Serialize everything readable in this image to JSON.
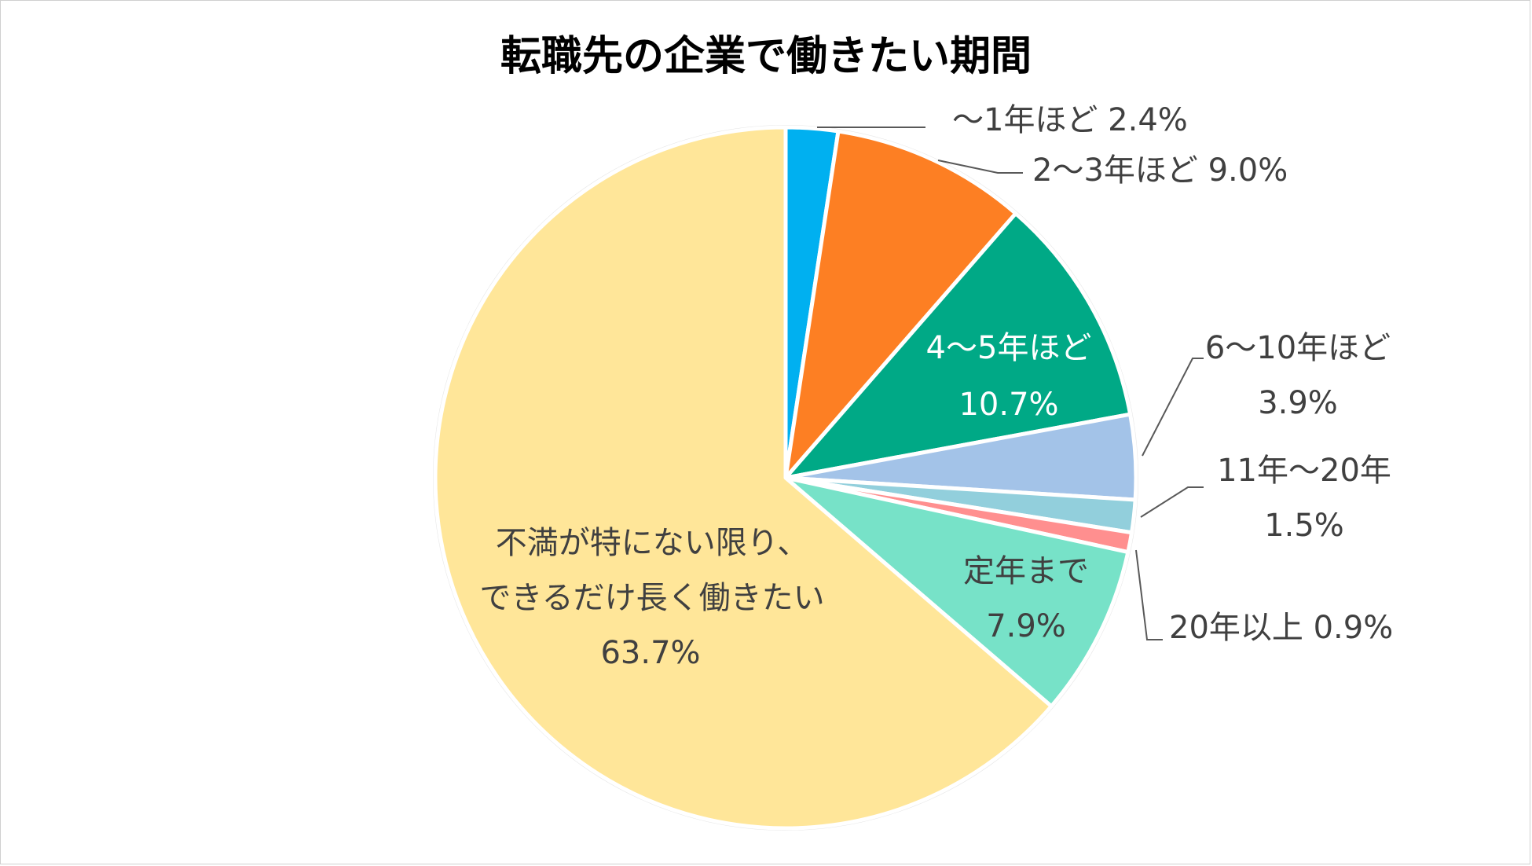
{
  "chart_data": {
    "type": "pie",
    "title": "転職先の企業で働きたい期間",
    "start": "top, clockwise",
    "slices": [
      {
        "label": "〜1年ほど",
        "value": 2.4,
        "value_text": "2.4%",
        "color": "#00b0f0",
        "text_color": "#404040"
      },
      {
        "label": "2〜3年ほど",
        "value": 9.0,
        "value_text": "9.0%",
        "color": "#fd7f23",
        "text_color": "#404040"
      },
      {
        "label": "4〜5年ほど",
        "value": 10.7,
        "value_text": "10.7%",
        "color": "#00a986",
        "text_color": "#ffffff"
      },
      {
        "label": "6〜10年ほど",
        "value": 3.9,
        "value_text": "3.9%",
        "color": "#a3c3e8",
        "text_color": "#404040"
      },
      {
        "label": "11年〜20年",
        "value": 1.5,
        "value_text": "1.5%",
        "color": "#92cfdc",
        "text_color": "#404040"
      },
      {
        "label": "20年以上",
        "value": 0.9,
        "value_text": "0.9%",
        "color": "#ff8f8f",
        "text_color": "#404040"
      },
      {
        "label": "定年まで",
        "value": 7.9,
        "value_text": "7.9%",
        "color": "#77e2c8",
        "text_color": "#404040"
      },
      {
        "label": "不満が特にない限り、\nできるだけ長く働きたい",
        "value": 63.7,
        "value_text": "63.7%",
        "color": "#ffe699",
        "text_color": "#404040"
      }
    ]
  }
}
